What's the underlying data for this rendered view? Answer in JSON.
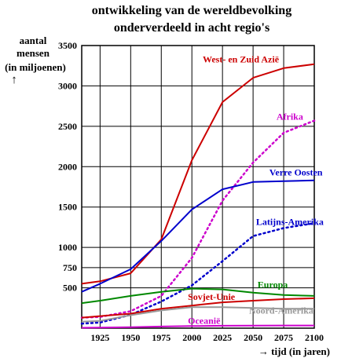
{
  "chart_data": {
    "type": "line",
    "title_line1": "ontwikkeling van de wereldbevolking",
    "title_line2": "onderverdeeld in acht regio's",
    "ylabel_line1": "aantal",
    "ylabel_line2": "mensen",
    "ylabel_line3": "(in miljoenen)",
    "ylabel_arrow": "↑",
    "xlabel": "→ tijd (in jaren)",
    "x": [
      1910,
      1925,
      1950,
      1975,
      2000,
      2025,
      2050,
      2075,
      2100
    ],
    "xlim": [
      1910,
      2100
    ],
    "ylim": [
      0,
      3500
    ],
    "xticks": [
      1925,
      1950,
      1975,
      2000,
      2025,
      2050,
      2075,
      2100
    ],
    "yticks": [
      500,
      750,
      1000,
      1500,
      2000,
      2500,
      3000,
      3500
    ],
    "ytick_labels": [
      "500",
      "750",
      "1000",
      "1500",
      "2000",
      "2500",
      "3000",
      "3500"
    ],
    "xtick_labels": [
      "1925",
      "1950",
      "1975",
      "2000",
      "2025",
      "2050",
      "2075",
      "2100"
    ],
    "grid": true,
    "series": [
      {
        "name": "West- en Zuid Azië",
        "color": "#cc0000",
        "style": "solid",
        "values": [
          550,
          580,
          680,
          1100,
          2080,
          2800,
          3100,
          3220,
          3270
        ]
      },
      {
        "name": "Afrika",
        "color": "#cc00cc",
        "style": "dotted",
        "values": [
          130,
          140,
          210,
          400,
          870,
          1580,
          2050,
          2420,
          2570
        ]
      },
      {
        "name": "Verre Oosten",
        "color": "#0000cc",
        "style": "solid",
        "values": [
          450,
          550,
          730,
          1080,
          1470,
          1720,
          1810,
          1820,
          1830
        ]
      },
      {
        "name": "Latijns-Amerika",
        "color": "#0000cc",
        "style": "dotted",
        "values": [
          55,
          70,
          165,
          330,
          530,
          830,
          1140,
          1240,
          1300
        ]
      },
      {
        "name": "Europa",
        "color": "#008800",
        "style": "solid",
        "values": [
          310,
          340,
          400,
          450,
          490,
          480,
          440,
          410,
          400
        ]
      },
      {
        "name": "Sovjet-Unie",
        "color": "#cc0000",
        "style": "solid",
        "values": [
          130,
          150,
          180,
          240,
          280,
          320,
          340,
          360,
          370
        ]
      },
      {
        "name": "Noord-Amerika",
        "color": "#999999",
        "style": "solid",
        "values": [
          80,
          90,
          160,
          220,
          260,
          260,
          250,
          240,
          240
        ]
      },
      {
        "name": "Oceanië",
        "color": "#cc00cc",
        "style": "solid",
        "values": [
          5,
          8,
          13,
          20,
          26,
          30,
          32,
          33,
          33
        ]
      }
    ],
    "annotations": [
      {
        "series": 0,
        "text": "West- en Zuid Azië"
      },
      {
        "series": 1,
        "text": "Afrika"
      },
      {
        "series": 2,
        "text": "Verre Oosten"
      },
      {
        "series": 3,
        "text": "Latijns-Amerika"
      },
      {
        "series": 4,
        "text": "Europa"
      },
      {
        "series": 5,
        "text": "Sovjet-Unie"
      },
      {
        "series": 6,
        "text": "Noord-Amerika"
      },
      {
        "series": 7,
        "text": "Oceanië"
      }
    ]
  }
}
